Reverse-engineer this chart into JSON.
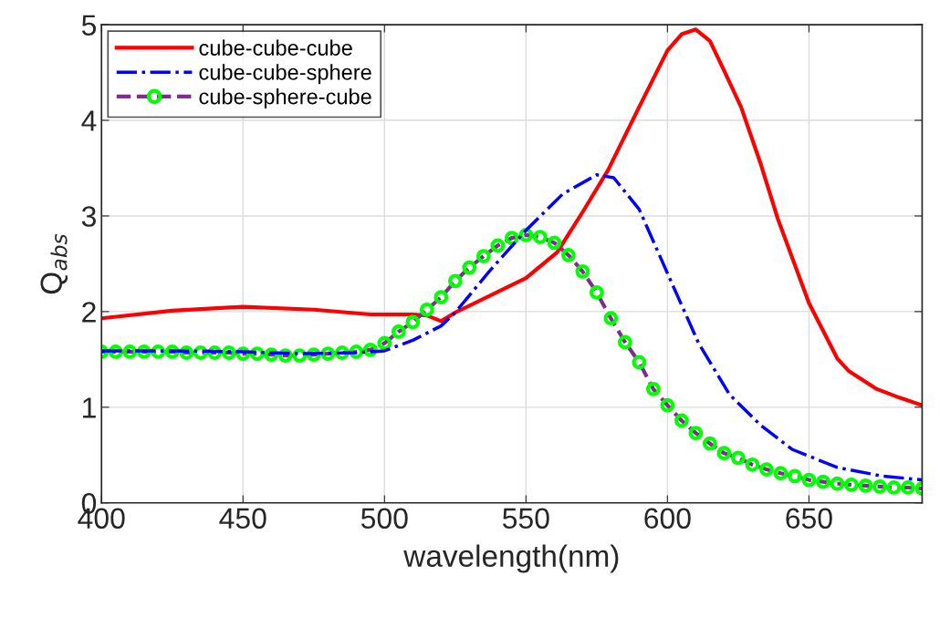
{
  "chart_data": {
    "type": "line",
    "xlabel": "wavelength(nm)",
    "ylabel": "Q$_{abs}$",
    "xlim": [
      400,
      690
    ],
    "ylim": [
      0,
      5
    ],
    "xticks": [
      400,
      450,
      500,
      550,
      600,
      650
    ],
    "yticks": [
      0,
      1,
      2,
      3,
      4,
      5
    ],
    "grid": true,
    "legend": "top left",
    "series": [
      {
        "name": "cube-cube-cube",
        "color": "#ff0000",
        "line_style": "solid",
        "marker": "none",
        "x": [
          400,
          425,
          450,
          475,
          495,
          510,
          515,
          520,
          525,
          550,
          561,
          570,
          579,
          590,
          600,
          605,
          610,
          615,
          620,
          626,
          633,
          639,
          650,
          660,
          664,
          674,
          682,
          690
        ],
        "values": [
          1.93,
          2.01,
          2.05,
          2.02,
          1.97,
          1.97,
          1.96,
          1.9,
          1.99,
          2.35,
          2.62,
          3.04,
          3.48,
          4.14,
          4.73,
          4.9,
          4.95,
          4.83,
          4.52,
          4.14,
          3.54,
          2.97,
          2.09,
          1.51,
          1.38,
          1.19,
          1.1,
          1.02
        ]
      },
      {
        "name": "cube-cube-sphere",
        "color": "#0000ff",
        "line_style": "dashdot",
        "marker": "none",
        "x": [
          400,
          425,
          450,
          470,
          490,
          500,
          510,
          520,
          525,
          537,
          550,
          563,
          575,
          581,
          590,
          600,
          611,
          622,
          633,
          644,
          660,
          676,
          690
        ],
        "values": [
          1.59,
          1.59,
          1.58,
          1.56,
          1.57,
          1.59,
          1.7,
          1.85,
          1.99,
          2.42,
          2.85,
          3.23,
          3.43,
          3.4,
          3.07,
          2.4,
          1.67,
          1.13,
          0.81,
          0.56,
          0.37,
          0.28,
          0.24
        ]
      },
      {
        "name": "cube-sphere-cube",
        "color": "#7e2f8e",
        "colors": [
          "#00ff00",
          "#00ff00",
          "#00ff00",
          "#00ff00",
          "#00ff00",
          "#00ff00",
          "#00ff00",
          "#00ff00",
          "#00ff00",
          "#00ff00",
          "#00ff00",
          "#00ff00",
          "#00ff00",
          "#00ff00",
          "#00ff00",
          "#00ff00",
          "#00ff00",
          "#00ff00",
          "#00ff00",
          "#00ff00",
          "#00ff00",
          "#00ff00",
          "#00ff00",
          "#00ff00",
          "#00ff00",
          "#00ff00",
          "#00ff00",
          "#00ff00",
          "#00ff00",
          "#00ff00",
          "#00ff00",
          "#00ff00",
          "#00ff00",
          "#00ff00",
          "#00ff00",
          "#00ff00",
          "#00ff00",
          "#00ff00",
          "#00ff00",
          "#00ff00",
          "#00ff00",
          "#00ff00",
          "#00ff00",
          "#00ff00",
          "#00ff00",
          "#00ff00",
          "#00ff00",
          "#00ff00",
          "#00ff00",
          "#00ff00",
          "#00ff00",
          "#00ff00",
          "#00ff00",
          "#00ff00",
          "#00ff00",
          "#00ff00",
          "#00ff00",
          "#00ff00",
          "#00ff00"
        ],
        "line_style": "dashed",
        "marker": "circle",
        "x": [
          400,
          405,
          410,
          415,
          420,
          425,
          430,
          435,
          440,
          445,
          450,
          455,
          460,
          465,
          470,
          475,
          480,
          485,
          490,
          495,
          500,
          505,
          510,
          515,
          520,
          525,
          530,
          535,
          540,
          545,
          550,
          555,
          560,
          565,
          570,
          575,
          580,
          585,
          590,
          595,
          600,
          605,
          610,
          615,
          620,
          625,
          630,
          635,
          640,
          645,
          650,
          655,
          660,
          665,
          670,
          675,
          680,
          685,
          690
        ],
        "values": [
          1.58,
          1.58,
          1.58,
          1.58,
          1.58,
          1.58,
          1.57,
          1.57,
          1.57,
          1.57,
          1.56,
          1.56,
          1.55,
          1.54,
          1.54,
          1.55,
          1.56,
          1.57,
          1.58,
          1.6,
          1.67,
          1.79,
          1.89,
          2.02,
          2.15,
          2.32,
          2.46,
          2.58,
          2.69,
          2.77,
          2.8,
          2.78,
          2.72,
          2.59,
          2.42,
          2.2,
          1.93,
          1.68,
          1.47,
          1.19,
          1.02,
          0.86,
          0.73,
          0.62,
          0.52,
          0.47,
          0.4,
          0.35,
          0.31,
          0.28,
          0.24,
          0.22,
          0.2,
          0.19,
          0.18,
          0.17,
          0.16,
          0.16,
          0.15
        ]
      }
    ]
  }
}
